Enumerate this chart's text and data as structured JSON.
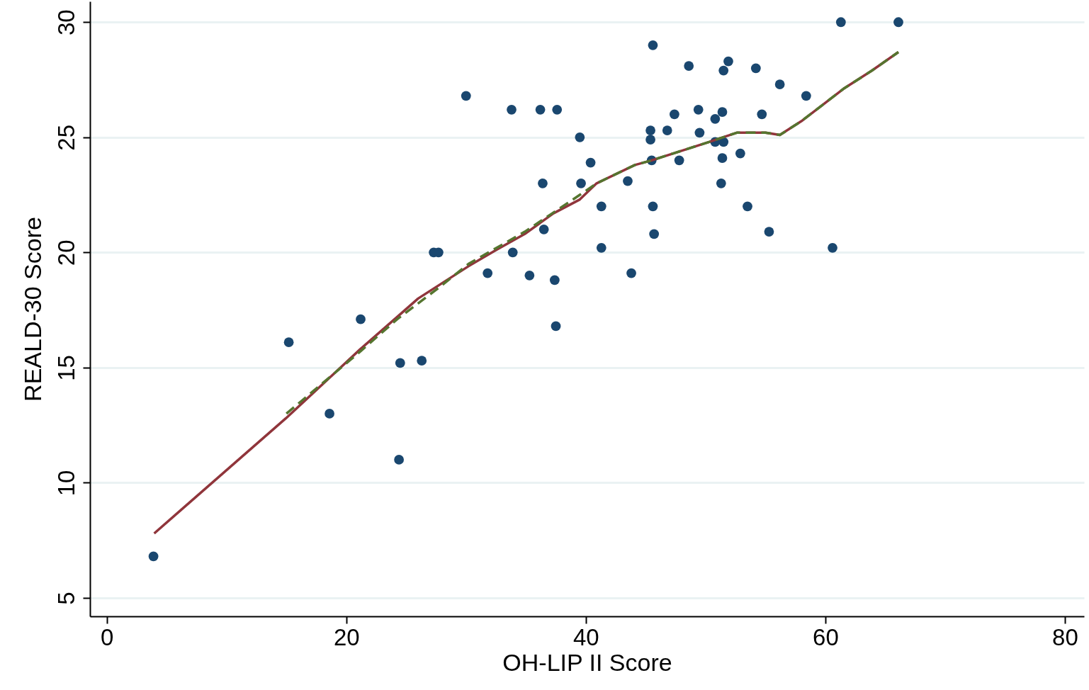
{
  "chart_data": {
    "type": "scatter",
    "xlabel": "OH-LIP II Score",
    "ylabel": "REALD-30 Score",
    "xlim": [
      -1.4,
      81.6
    ],
    "ylim": [
      4.2,
      30.9
    ],
    "xticks": [
      0,
      20,
      40,
      60,
      80
    ],
    "yticks": [
      5,
      10,
      15,
      20,
      25,
      30
    ],
    "grid": "y",
    "series": [
      {
        "color": "#1a476f",
        "marker": "circle",
        "x": [
          3.9,
          15.2,
          18.6,
          21.2,
          24.4,
          24.5,
          26.3,
          27.3,
          27.7,
          30.0,
          31.8,
          33.8,
          33.9,
          35.3,
          36.2,
          36.4,
          36.5,
          37.4,
          37.5,
          37.6,
          39.5,
          39.6,
          40.4,
          41.3,
          41.3,
          43.5,
          43.8,
          45.4,
          45.4,
          45.5,
          45.6,
          45.6,
          45.7,
          46.8,
          47.4,
          47.8,
          48.6,
          49.4,
          49.5,
          50.8,
          50.8,
          51.5,
          51.4,
          51.3,
          51.4,
          51.5,
          51.9,
          52.9,
          53.5,
          54.2,
          54.7,
          55.3,
          56.2,
          58.4,
          60.6,
          61.3,
          66.1
        ],
        "values": [
          6.8,
          16.1,
          13.0,
          17.1,
          11.0,
          15.2,
          15.3,
          20.0,
          20.0,
          26.8,
          19.1,
          26.2,
          20.0,
          19.0,
          26.2,
          23.0,
          21.0,
          18.8,
          16.8,
          26.2,
          25.0,
          23.0,
          23.9,
          20.2,
          22.0,
          23.1,
          19.1,
          25.3,
          24.9,
          24.0,
          29.0,
          22.0,
          20.8,
          25.3,
          26.0,
          24.0,
          28.1,
          26.2,
          25.2,
          25.8,
          24.8,
          24.8,
          24.1,
          23.0,
          26.1,
          27.9,
          28.3,
          24.3,
          22.0,
          28.0,
          26.0,
          20.9,
          27.3,
          26.8,
          20.2,
          30.0,
          30.0
        ]
      },
      {
        "type": "line",
        "color": "#90353b",
        "line_style": "solid",
        "marker": "none",
        "x": [
          3.96,
          14.96,
          21.17,
          24.25,
          26.0,
          27.8,
          30.2,
          32.5,
          34.9,
          37.3,
          39.5,
          40.9,
          44.1,
          45.5,
          47.3,
          50.3,
          52.6,
          53.8,
          55.0,
          56.2,
          58.0,
          61.5,
          63.9,
          66.1
        ],
        "values": [
          7.8,
          12.8,
          15.8,
          17.2,
          18.0,
          18.6,
          19.4,
          20.1,
          20.8,
          21.7,
          22.3,
          23.0,
          23.8,
          24.0,
          24.3,
          24.8,
          25.2,
          25.2,
          25.2,
          25.1,
          25.7,
          27.1,
          27.9,
          28.7
        ]
      },
      {
        "type": "line",
        "color": "#55752f",
        "line_style": "dashed",
        "marker": "none",
        "x": [
          15.0,
          21.17,
          24.25,
          27.8,
          30.2,
          34.9,
          39.5,
          40.9,
          44.1,
          45.5,
          47.3,
          50.3,
          52.6,
          53.8,
          55.0,
          56.2,
          58.0,
          61.5,
          63.9,
          66.1
        ],
        "values": [
          13.0,
          15.7,
          17.1,
          18.5,
          19.5,
          20.9,
          22.5,
          23.0,
          23.8,
          24.0,
          24.3,
          24.8,
          25.2,
          25.2,
          25.2,
          25.1,
          25.7,
          27.1,
          27.9,
          28.7
        ]
      }
    ]
  }
}
